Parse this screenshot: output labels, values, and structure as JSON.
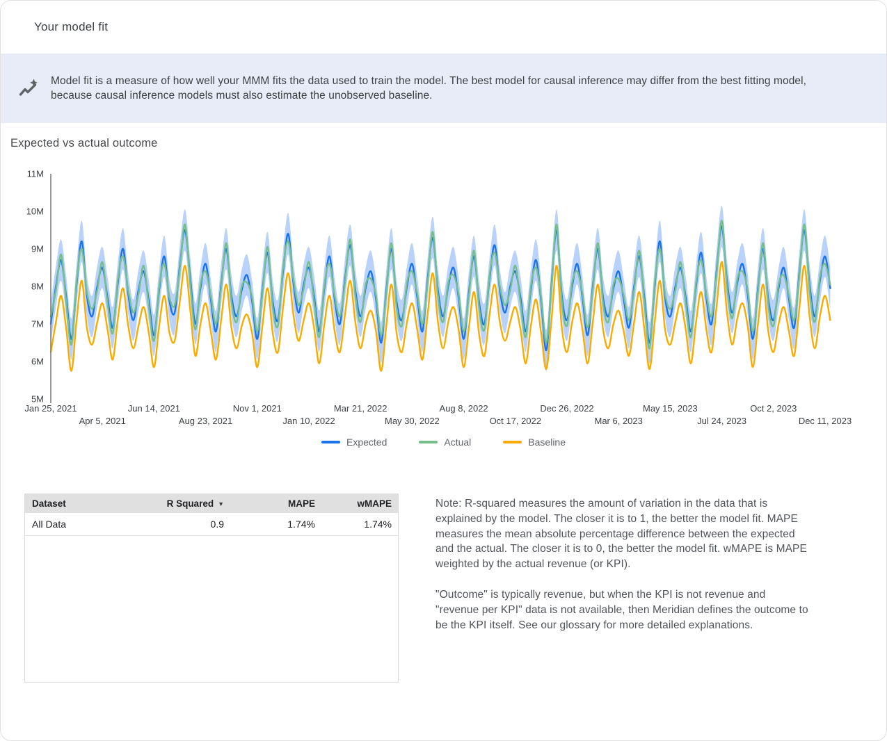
{
  "page": {
    "title": "Your model fit"
  },
  "banner": {
    "icon": "auto-graph-icon",
    "text": "Model fit is a measure of how well your MMM fits the data used to train the model. The best model for causal inference may differ from the best fitting model, because causal inference models must also estimate the unobserved baseline."
  },
  "section": {
    "title": "Expected vs actual outcome"
  },
  "chart_data": {
    "type": "line",
    "title": "Expected vs actual outcome",
    "x_unit": "week",
    "x_start": "Jan 25, 2021",
    "x_end": "Dec 11, 2023",
    "ylim": [
      5000000,
      11000000
    ],
    "grid": false,
    "legend_position": "bottom",
    "y_ticks": [
      {
        "value": 11,
        "label": "11M"
      },
      {
        "value": 10,
        "label": "10M"
      },
      {
        "value": 9,
        "label": "9M"
      },
      {
        "value": 8,
        "label": "8M"
      },
      {
        "value": 7,
        "label": "7M"
      },
      {
        "value": 6,
        "label": "6M"
      },
      {
        "value": 5,
        "label": "5M"
      }
    ],
    "x_ticks_row1": [
      {
        "week": 0,
        "label": "Jan 25, 2021"
      },
      {
        "week": 20,
        "label": "Jun 14, 2021"
      },
      {
        "week": 40,
        "label": "Nov 1, 2021"
      },
      {
        "week": 60,
        "label": "Mar 21, 2022"
      },
      {
        "week": 80,
        "label": "Aug 8, 2022"
      },
      {
        "week": 100,
        "label": "Dec 26, 2022"
      },
      {
        "week": 120,
        "label": "May 15, 2023"
      },
      {
        "week": 140,
        "label": "Oct 2, 2023"
      }
    ],
    "x_ticks_row2": [
      {
        "week": 10,
        "label": "Apr 5, 2021"
      },
      {
        "week": 30,
        "label": "Aug 23, 2021"
      },
      {
        "week": 50,
        "label": "Jan 10, 2022"
      },
      {
        "week": 70,
        "label": "May 30, 2022"
      },
      {
        "week": 90,
        "label": "Oct 17, 2022"
      },
      {
        "week": 110,
        "label": "Mar 6, 2023"
      },
      {
        "week": 130,
        "label": "Jul 24, 2023"
      },
      {
        "week": 150,
        "label": "Dec 11, 2023"
      }
    ],
    "values_unit": "millions",
    "ci_halfwidth": 0.55,
    "band_color": "#A8C7FA",
    "series": [
      {
        "name": "Expected",
        "color": "#1A73E8",
        "values": [
          7.0,
          8.0,
          8.7,
          7.7,
          6.6,
          8.05,
          9.2,
          7.75,
          7.2,
          8.0,
          8.5,
          7.7,
          6.9,
          8.1,
          9.0,
          7.8,
          7.1,
          7.9,
          8.4,
          7.6,
          6.7,
          7.9,
          8.8,
          7.6,
          7.3,
          8.55,
          9.5,
          8.25,
          7.0,
          7.95,
          8.6,
          7.65,
          6.8,
          8.05,
          9.0,
          7.75,
          7.2,
          7.9,
          8.3,
          7.6,
          6.6,
          7.9,
          8.9,
          7.6,
          7.1,
          8.4,
          9.4,
          8.1,
          7.3,
          8.05,
          8.5,
          7.75,
          6.8,
          7.95,
          8.8,
          7.65,
          7.0,
          8.2,
          9.1,
          7.9,
          7.2,
          7.95,
          8.4,
          7.65,
          6.5,
          7.9,
          9.0,
          7.6,
          7.1,
          8.0,
          8.6,
          7.7,
          6.8,
          8.2,
          9.3,
          7.9,
          7.2,
          8.0,
          8.5,
          7.7,
          6.6,
          7.85,
          8.8,
          7.55,
          7.0,
          8.2,
          9.1,
          7.9,
          7.3,
          8.0,
          8.4,
          7.7,
          6.8,
          7.9,
          8.7,
          7.6,
          6.3,
          8.05,
          9.5,
          7.75,
          7.1,
          8.0,
          8.6,
          7.7,
          6.7,
          8.0,
          9.0,
          7.7,
          7.2,
          7.95,
          8.4,
          7.65,
          6.9,
          8.0,
          8.8,
          7.7,
          6.5,
          8.0,
          9.2,
          7.7,
          7.2,
          8.0,
          8.5,
          7.7,
          6.8,
          8.0,
          8.9,
          7.7,
          7.0,
          8.45,
          9.6,
          8.15,
          7.3,
          8.1,
          8.6,
          7.8,
          6.6,
          7.95,
          9.0,
          7.65,
          7.1,
          7.95,
          8.5,
          7.65,
          6.9,
          8.35,
          9.5,
          8.05,
          7.2,
          8.15,
          8.8,
          7.95
        ]
      },
      {
        "name": "Actual",
        "color": "#76BF8B",
        "values": [
          7.2,
          7.9,
          8.85,
          7.55,
          6.45,
          8.15,
          9.0,
          7.85,
          7.4,
          7.9,
          8.65,
          7.55,
          6.75,
          8.2,
          8.8,
          7.9,
          7.3,
          7.8,
          8.55,
          7.45,
          6.55,
          8.0,
          8.6,
          7.7,
          7.5,
          8.45,
          9.65,
          8.1,
          6.85,
          8.05,
          8.4,
          7.75,
          7.0,
          7.95,
          9.15,
          7.6,
          7.05,
          8.0,
          8.1,
          7.7,
          6.8,
          7.8,
          9.05,
          7.45,
          6.95,
          8.5,
          9.2,
          8.2,
          7.5,
          7.95,
          8.65,
          7.6,
          6.65,
          8.05,
          8.6,
          7.75,
          7.2,
          8.1,
          9.25,
          7.75,
          7.05,
          8.05,
          8.2,
          7.75,
          6.7,
          7.8,
          9.15,
          7.45,
          6.95,
          8.1,
          8.4,
          7.8,
          7.0,
          8.1,
          9.45,
          7.75,
          7.05,
          8.1,
          8.3,
          7.8,
          6.8,
          7.75,
          8.95,
          7.4,
          6.85,
          8.3,
          8.9,
          8.0,
          7.5,
          7.9,
          8.55,
          7.55,
          6.65,
          8.0,
          8.5,
          7.7,
          6.5,
          7.95,
          9.65,
          7.6,
          6.95,
          8.1,
          8.4,
          7.8,
          6.9,
          7.9,
          9.15,
          7.55,
          7.05,
          8.05,
          8.2,
          7.75,
          7.1,
          7.9,
          8.95,
          7.55,
          6.35,
          8.1,
          9.0,
          7.8,
          7.4,
          7.9,
          8.65,
          7.55,
          6.65,
          8.1,
          8.7,
          7.8,
          7.2,
          8.35,
          9.75,
          8.0,
          7.15,
          8.2,
          8.4,
          7.9,
          6.8,
          7.85,
          9.15,
          7.5,
          6.95,
          8.05,
          8.3,
          7.75,
          7.1,
          8.25,
          9.65,
          7.9,
          7.05,
          8.25,
          8.6,
          8.05
        ]
      },
      {
        "name": "Baseline",
        "color": "#F9AB00",
        "values": [
          6.25,
          7.05,
          7.75,
          6.85,
          5.75,
          7.1,
          8.15,
          6.9,
          6.45,
          7.05,
          7.55,
          6.85,
          6.05,
          7.15,
          7.95,
          6.95,
          6.35,
          6.95,
          7.45,
          6.75,
          5.85,
          6.95,
          7.75,
          6.75,
          6.55,
          7.6,
          8.55,
          7.4,
          6.15,
          7.0,
          7.55,
          6.8,
          6.05,
          7.1,
          8.05,
          6.9,
          6.35,
          6.95,
          7.25,
          6.75,
          5.85,
          6.95,
          7.95,
          6.75,
          6.25,
          7.45,
          8.35,
          7.25,
          6.55,
          7.1,
          7.55,
          6.9,
          5.95,
          7.0,
          7.75,
          6.8,
          6.25,
          7.25,
          8.15,
          7.05,
          6.35,
          7.0,
          7.35,
          6.8,
          5.75,
          6.95,
          8.05,
          6.75,
          6.25,
          7.05,
          7.55,
          6.85,
          6.05,
          7.25,
          8.35,
          7.05,
          6.35,
          7.05,
          7.45,
          6.85,
          5.85,
          6.9,
          7.85,
          6.7,
          6.15,
          7.25,
          8.05,
          7.05,
          6.55,
          7.05,
          7.45,
          6.85,
          5.95,
          6.95,
          7.65,
          6.75,
          5.8,
          7.1,
          8.55,
          6.9,
          6.25,
          7.05,
          7.55,
          6.85,
          5.95,
          7.05,
          8.05,
          6.85,
          6.35,
          7.0,
          7.35,
          6.8,
          6.15,
          7.05,
          7.85,
          6.85,
          5.8,
          7.05,
          8.15,
          6.85,
          6.45,
          7.05,
          7.55,
          6.85,
          5.95,
          7.05,
          7.85,
          6.85,
          6.25,
          7.5,
          8.65,
          7.3,
          6.45,
          7.15,
          7.55,
          6.95,
          5.85,
          7.0,
          8.05,
          6.8,
          6.25,
          7.0,
          7.45,
          6.8,
          6.15,
          7.4,
          8.55,
          7.2,
          6.35,
          7.2,
          7.75,
          7.1
        ]
      }
    ]
  },
  "table": {
    "columns": [
      "Dataset",
      "R Squared",
      "MAPE",
      "wMAPE"
    ],
    "sort_icon": "▼",
    "rows": [
      {
        "dataset": "All Data",
        "r_squared": "0.9",
        "mape": "1.74%",
        "wmape": "1.74%"
      }
    ]
  },
  "note": {
    "p1": "Note: R-squared measures the amount of variation in the data that is explained by the model. The closer it is to 1, the better the model fit. MAPE measures the mean absolute percentage difference between the expected and the actual. The closer it is to 0, the better the model fit. wMAPE is MAPE weighted by the actual revenue (or KPI).",
    "p2": "\"Outcome\" is typically revenue, but when the KPI is not revenue and \"revenue per KPI\" data is not available, then Meridian defines the outcome to be the KPI itself. See our glossary for more detailed explanations."
  }
}
